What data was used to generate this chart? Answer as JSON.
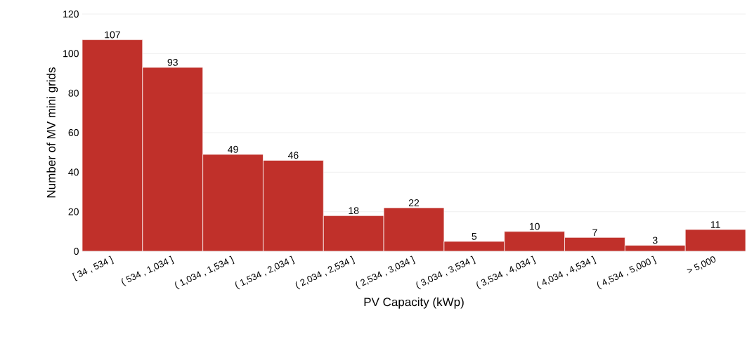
{
  "chart_data": {
    "type": "bar",
    "xlabel": "PV Capacity (kWp)",
    "ylabel": "Number of MV mini grids",
    "categories": [
      "[ 34 , 534 ]",
      "( 534 , 1,034 ]",
      "( 1,034 , 1,534 ]",
      "( 1,534 , 2,034 ]",
      "( 2,034 , 2,534 ]",
      "( 2,534 , 3,034 ]",
      "( 3,034 , 3,534 ]",
      "( 3,534 , 4,034 ]",
      "( 4,034 , 4,534 ]",
      "( 4,534 , 5,000 ]",
      "> 5,000"
    ],
    "values": [
      107,
      93,
      49,
      46,
      18,
      22,
      5,
      10,
      7,
      3,
      11
    ],
    "color": "#c0302a",
    "data_labels": true,
    "grid": "y",
    "ylim": [
      0,
      120
    ],
    "yticks": [
      0,
      20,
      40,
      60,
      80,
      100,
      120
    ]
  }
}
